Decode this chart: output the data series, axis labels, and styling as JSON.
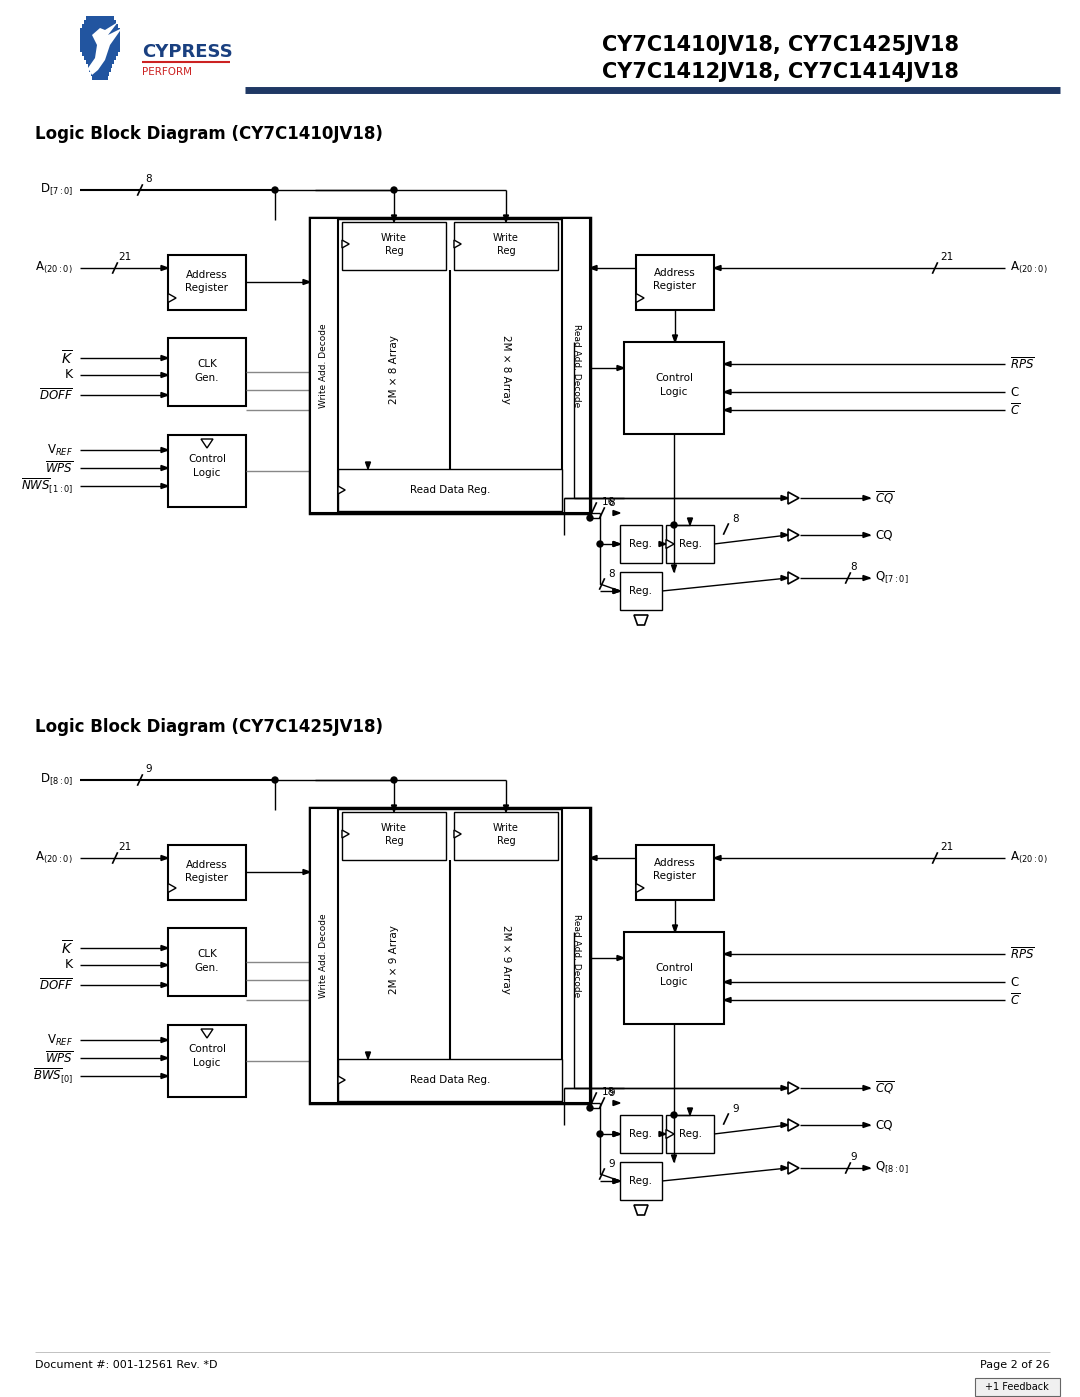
{
  "title_line1": "CY7C1410JV18, CY7C1425JV18",
  "title_line2": "CY7C1412JV18, CY7C1414JV18",
  "diagram1_title": "Logic Block Diagram (CY7C1410JV18)",
  "diagram2_title": "Logic Block Diagram (CY7C1425JV18)",
  "footer_left": "Document #: 001-12561 Rev. *D",
  "footer_right": "Page 2 of 26",
  "bg_color": "#ffffff",
  "line_color": "#000000",
  "header_line_color": "#1f3864"
}
